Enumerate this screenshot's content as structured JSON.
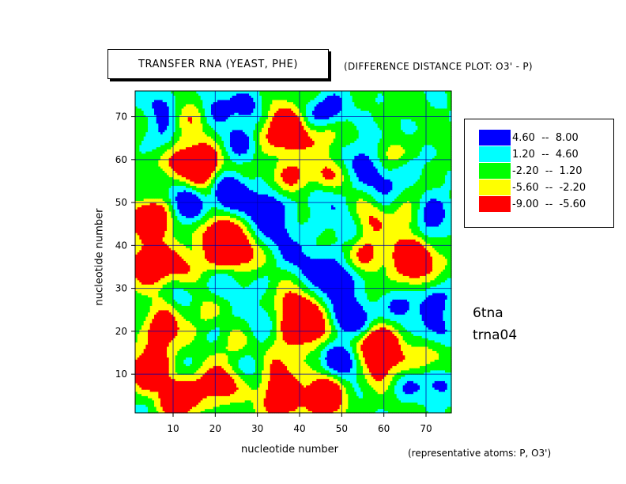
{
  "chart_data": {
    "type": "heatmap",
    "title": "TRANSFER RNA (YEAST, PHE)",
    "subtitle": "(DIFFERENCE DISTANCE PLOT: O3' - P)",
    "xlabel": "nucleotide number",
    "ylabel": "nucleotide number",
    "xlim": [
      1,
      76
    ],
    "ylim": [
      1,
      76
    ],
    "x_ticks": [
      "10",
      "20",
      "30",
      "40",
      "50",
      "60",
      "70"
    ],
    "y_ticks": [
      "10",
      "20",
      "30",
      "40",
      "50",
      "60",
      "70"
    ],
    "grid": true,
    "legend_position": "right",
    "levels": [
      {
        "label": "4.60  --  8.00",
        "min": 4.6,
        "max": 8.0,
        "color": "#0000ff"
      },
      {
        "label": "1.20  --  4.60",
        "min": 1.2,
        "max": 4.6,
        "color": "#00ffff"
      },
      {
        "label": "-2.20  --  1.20",
        "min": -2.2,
        "max": 1.2,
        "color": "#00ff00"
      },
      {
        "label": "-5.60  --  -2.20",
        "min": -5.6,
        "max": -2.2,
        "color": "#ffff00"
      },
      {
        "label": "-9.00  --  -5.60",
        "min": -9.0,
        "max": -5.6,
        "color": "#ff0000"
      }
    ],
    "features": [
      {
        "x": 15,
        "y": 49,
        "value": 6.5
      },
      {
        "x": 11,
        "y": 29,
        "value": 6.0
      },
      {
        "x": 24,
        "y": 52,
        "value": 6.5
      },
      {
        "x": 27,
        "y": 64,
        "value": 5.5
      },
      {
        "x": 42,
        "y": 36,
        "value": 5.0
      },
      {
        "x": 50,
        "y": 32,
        "value": 6.5
      },
      {
        "x": 53,
        "y": 22,
        "value": 5.5
      },
      {
        "x": 52,
        "y": 13,
        "value": 6.0
      },
      {
        "x": 65,
        "y": 8,
        "value": 5.5
      },
      {
        "x": 73,
        "y": 28,
        "value": 6.5
      },
      {
        "x": 8,
        "y": 73,
        "value": 6.0
      },
      {
        "x": 20,
        "y": 72,
        "value": 5.5
      },
      {
        "x": 48,
        "y": 72,
        "value": 6.0
      },
      {
        "x": 60,
        "y": 55,
        "value": 5.5
      },
      {
        "x": 70,
        "y": 45,
        "value": 5.0
      },
      {
        "x": 22,
        "y": 31,
        "value": 5.0
      },
      {
        "x": 45,
        "y": 52,
        "value": 5.0
      },
      {
        "x": 35,
        "y": 47,
        "value": 3.0
      },
      {
        "x": 58,
        "y": 65,
        "value": 3.5
      },
      {
        "x": 4,
        "y": 46,
        "value": -8.0
      },
      {
        "x": 4,
        "y": 36,
        "value": -7.5
      },
      {
        "x": 12,
        "y": 35,
        "value": -6.0
      },
      {
        "x": 8,
        "y": 22,
        "value": -6.5
      },
      {
        "x": 4,
        "y": 11,
        "value": -7.0
      },
      {
        "x": 11,
        "y": 5,
        "value": -7.0
      },
      {
        "x": 18,
        "y": 7,
        "value": -6.0
      },
      {
        "x": 36,
        "y": 5,
        "value": -7.5
      },
      {
        "x": 46,
        "y": 6,
        "value": -7.5
      },
      {
        "x": 26,
        "y": 38,
        "value": -7.5
      },
      {
        "x": 23,
        "y": 43,
        "value": -6.5
      },
      {
        "x": 38,
        "y": 21,
        "value": -7.0
      },
      {
        "x": 43,
        "y": 19,
        "value": -6.0
      },
      {
        "x": 17,
        "y": 59,
        "value": -7.0
      },
      {
        "x": 11,
        "y": 59,
        "value": -6.5
      },
      {
        "x": 38,
        "y": 67,
        "value": -7.0
      },
      {
        "x": 46,
        "y": 66,
        "value": -6.5
      },
      {
        "x": 60,
        "y": 17,
        "value": -6.5
      },
      {
        "x": 54,
        "y": 17,
        "value": -6.0
      },
      {
        "x": 56,
        "y": 38,
        "value": -7.5
      },
      {
        "x": 56,
        "y": 46,
        "value": -6.5
      },
      {
        "x": 66,
        "y": 37,
        "value": -6.0
      },
      {
        "x": 71,
        "y": 14,
        "value": -4.5
      },
      {
        "x": 72,
        "y": 36,
        "value": -4.0
      },
      {
        "x": 31,
        "y": 65,
        "value": -4.5
      },
      {
        "x": 12,
        "y": 65,
        "value": -4.0
      },
      {
        "x": 30,
        "y": 9,
        "value": -4.5
      },
      {
        "x": 62,
        "y": 61,
        "value": -3.5
      },
      {
        "x": 25,
        "y": 17,
        "value": -4.0
      },
      {
        "x": 30,
        "y": 47,
        "value": 2.5
      },
      {
        "x": 64,
        "y": 24,
        "value": 2.8
      }
    ]
  },
  "labels": {
    "structure_id": "6tna",
    "run_id": "trna04",
    "footnote": "(representative atoms: P, O3')"
  }
}
